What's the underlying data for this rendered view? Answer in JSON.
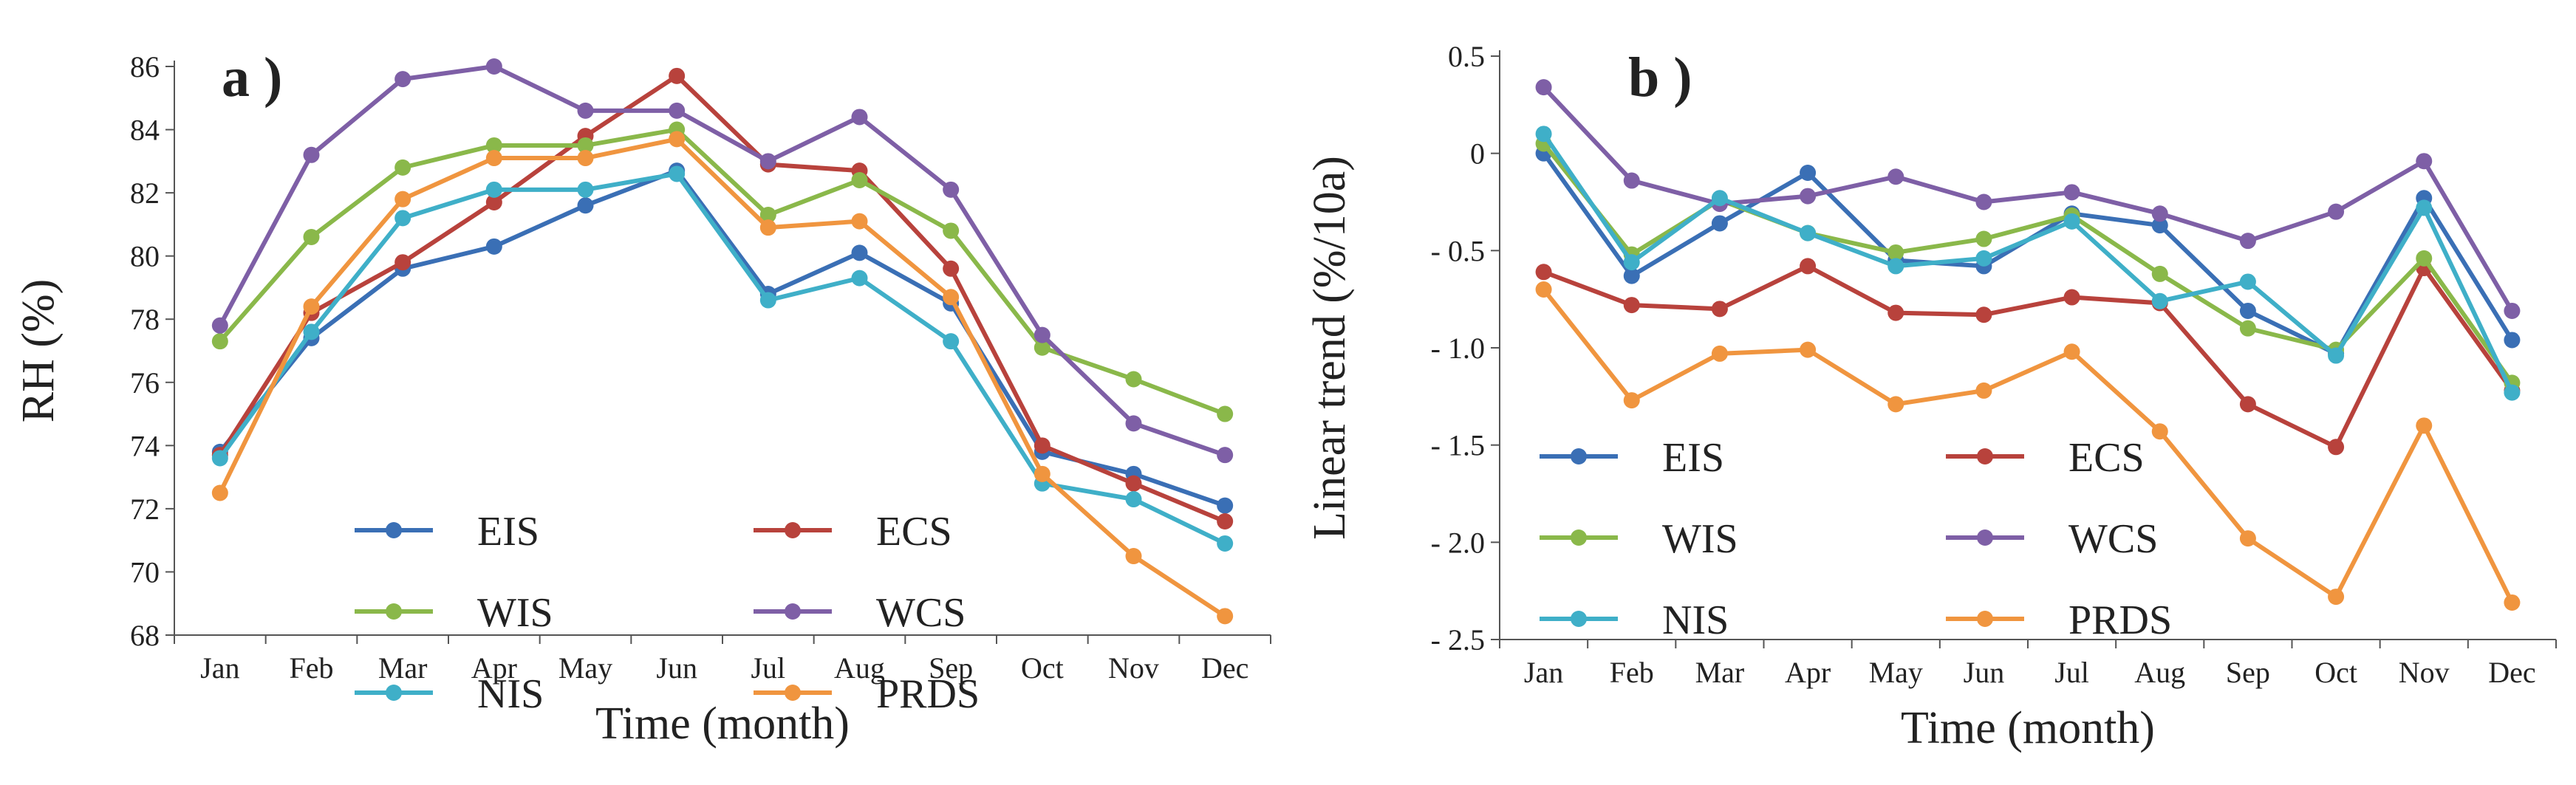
{
  "chart_data": [
    {
      "type": "line",
      "panel_label": "a )",
      "xlabel": "Time (month)",
      "ylabel": "RH (%)",
      "categories": [
        "Jan",
        "Feb",
        "Mar",
        "Apr",
        "May",
        "Jun",
        "Jul",
        "Aug",
        "Sep",
        "Oct",
        "Nov",
        "Dec"
      ],
      "ylim": [
        68,
        86
      ],
      "yticks": [
        "68",
        "70",
        "72",
        "74",
        "76",
        "78",
        "80",
        "82",
        "84",
        "86"
      ],
      "grid": false,
      "legend_position": "lower-center",
      "series": [
        {
          "name": "EIS",
          "color": "#3a6fb5",
          "values": [
            73.8,
            77.4,
            79.6,
            80.3,
            81.6,
            82.7,
            78.8,
            80.1,
            78.5,
            73.8,
            73.1,
            72.1
          ]
        },
        {
          "name": "ECS",
          "color": "#b8423c",
          "values": [
            73.7,
            78.2,
            79.8,
            81.7,
            83.8,
            85.7,
            82.9,
            82.7,
            79.6,
            74.0,
            72.8,
            71.6
          ]
        },
        {
          "name": "WIS",
          "color": "#8ab84a",
          "values": [
            77.3,
            80.6,
            82.8,
            83.5,
            83.5,
            84.0,
            81.3,
            82.4,
            80.8,
            77.1,
            76.1,
            75.0
          ]
        },
        {
          "name": "WCS",
          "color": "#7e5fa6",
          "values": [
            77.8,
            83.2,
            85.6,
            86.0,
            84.6,
            84.6,
            83.0,
            84.4,
            82.1,
            77.5,
            74.7,
            73.7
          ]
        },
        {
          "name": "NIS",
          "color": "#3fafc8",
          "values": [
            73.6,
            77.6,
            81.2,
            82.1,
            82.1,
            82.6,
            78.6,
            79.3,
            77.3,
            72.8,
            72.3,
            70.9
          ]
        },
        {
          "name": "PRDS",
          "color": "#f0953f",
          "values": [
            72.5,
            78.4,
            81.8,
            83.1,
            83.1,
            83.7,
            80.9,
            81.1,
            78.7,
            73.1,
            70.5,
            68.6
          ]
        }
      ]
    },
    {
      "type": "line",
      "panel_label": "b )",
      "xlabel": "Time (month)",
      "ylabel": "Linear trend (%/10a)",
      "categories": [
        "Jan",
        "Feb",
        "Mar",
        "Apr",
        "May",
        "Jun",
        "Jul",
        "Aug",
        "Sep",
        "Oct",
        "Nov",
        "Dec"
      ],
      "ylim": [
        -2.5,
        0.5
      ],
      "yticks": [
        "- 2.5",
        "- 2.0",
        "- 1.5",
        "- 1.0",
        "- 0.5",
        "0",
        "0.5"
      ],
      "grid": false,
      "legend_position": "lower-left",
      "series": [
        {
          "name": "EIS",
          "color": "#3a6fb5",
          "values": [
            0.0,
            -0.63,
            -0.36,
            -0.1,
            -0.55,
            -0.58,
            -0.31,
            -0.37,
            -0.81,
            -1.03,
            -0.23,
            -0.96
          ]
        },
        {
          "name": "ECS",
          "color": "#b8423c",
          "values": [
            -0.61,
            -0.78,
            -0.8,
            -0.58,
            -0.82,
            -0.83,
            -0.74,
            -0.77,
            -1.29,
            -1.51,
            -0.59,
            -1.22
          ]
        },
        {
          "name": "WIS",
          "color": "#8ab84a",
          "values": [
            0.05,
            -0.52,
            -0.24,
            -0.41,
            -0.51,
            -0.44,
            -0.32,
            -0.62,
            -0.9,
            -1.01,
            -0.54,
            -1.18
          ]
        },
        {
          "name": "WCS",
          "color": "#7e5fa6",
          "values": [
            0.34,
            -0.14,
            -0.26,
            -0.22,
            -0.12,
            -0.25,
            -0.2,
            -0.31,
            -0.45,
            -0.3,
            -0.04,
            -0.81
          ]
        },
        {
          "name": "NIS",
          "color": "#3fafc8",
          "values": [
            0.1,
            -0.56,
            -0.23,
            -0.41,
            -0.58,
            -0.54,
            -0.35,
            -0.76,
            -0.66,
            -1.04,
            -0.28,
            -1.23
          ]
        },
        {
          "name": "PRDS",
          "color": "#f0953f",
          "values": [
            -0.7,
            -1.27,
            -1.03,
            -1.01,
            -1.29,
            -1.22,
            -1.02,
            -1.43,
            -1.98,
            -2.28,
            -1.4,
            -2.31
          ]
        }
      ]
    }
  ]
}
